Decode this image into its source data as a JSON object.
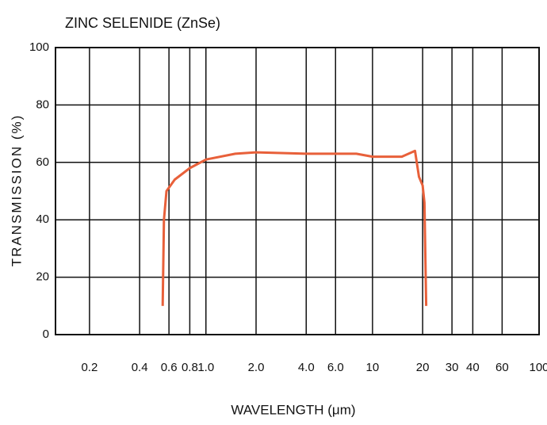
{
  "chart_data": {
    "type": "line",
    "title": "ZINC SELENIDE (ZnSe)",
    "x_label": "WAVELENGTH (μm)",
    "y_label": "TRANSMISSION (%)",
    "x_scale": "log",
    "grid": true,
    "xlim": [
      0.125,
      100
    ],
    "ylim": [
      0,
      100
    ],
    "xticks": [
      0.2,
      0.4,
      0.6,
      0.8,
      {
        "value": 1,
        "label": "1.0"
      },
      {
        "value": 2,
        "label": "2.0"
      },
      {
        "value": 4,
        "label": "4.0"
      },
      {
        "value": 6,
        "label": "6.0"
      },
      10,
      20,
      30,
      40,
      60,
      100
    ],
    "yticks": [
      0,
      20,
      40,
      60,
      80,
      100
    ],
    "series": [
      {
        "color": "#e8603a",
        "x": [
          0.55,
          0.56,
          0.58,
          0.65,
          0.8,
          1.0,
          1.5,
          2,
          4,
          8,
          10,
          15,
          18,
          19,
          20,
          20.5,
          21
        ],
        "values": [
          10,
          40,
          50,
          54,
          58,
          61,
          63,
          63.5,
          63,
          63,
          62,
          62,
          64,
          55,
          52,
          46,
          10
        ]
      }
    ]
  }
}
